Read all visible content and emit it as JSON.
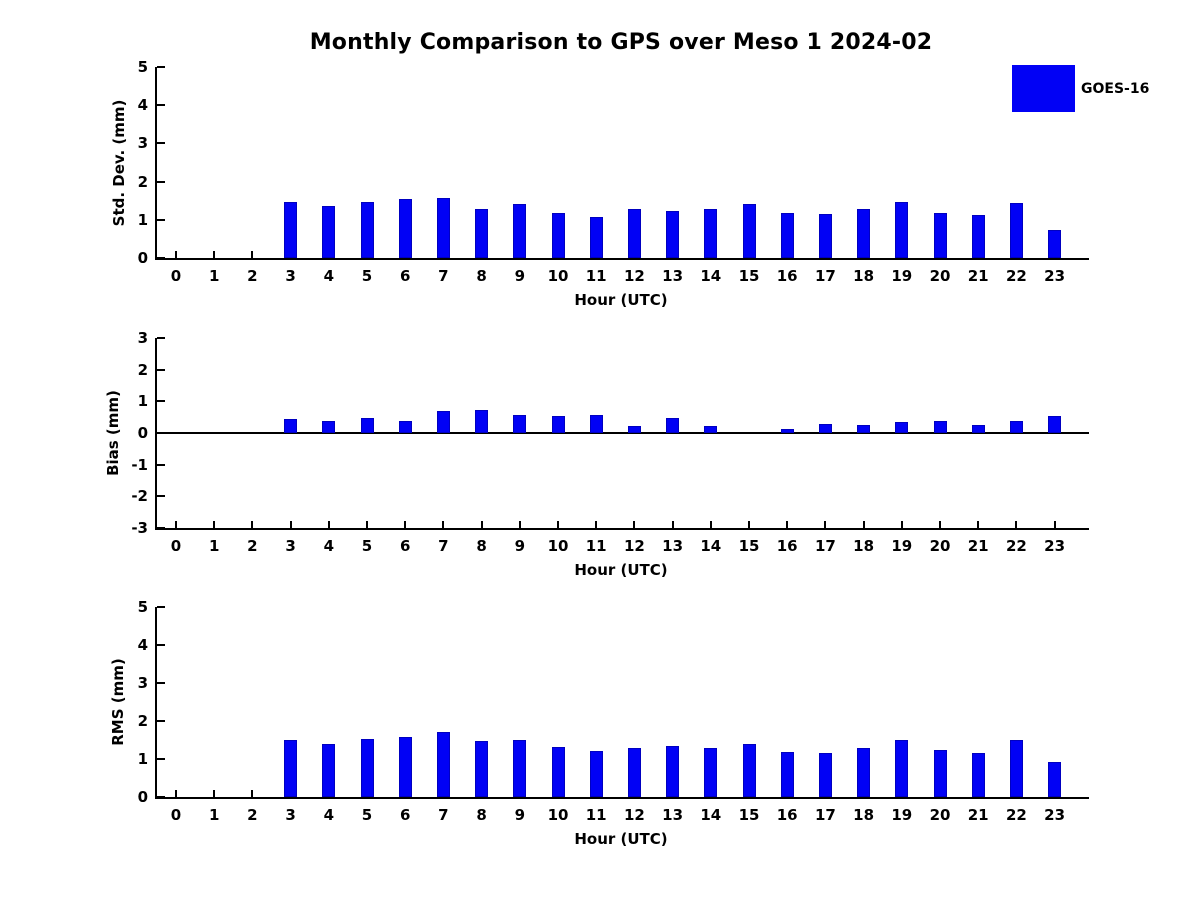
{
  "page": {
    "title_label": "Monthly Comparison to GPS over Meso 1 2024-02"
  },
  "legend": {
    "label": "GOES-16",
    "color": "#0101f5"
  },
  "chart_data": [
    {
      "type": "bar",
      "panel": "std-dev",
      "title": "Monthly Comparison to GPS over Meso 1 2024-02",
      "ylabel": "Std. Dev. (mm)",
      "xlabel": "Hour (UTC)",
      "ylim": [
        0,
        5
      ],
      "yticks": [
        0,
        1,
        2,
        3,
        4,
        5
      ],
      "grid": false,
      "legend_position": "outside-top-right",
      "categories": [
        0,
        1,
        2,
        3,
        4,
        5,
        6,
        7,
        8,
        9,
        10,
        11,
        12,
        13,
        14,
        15,
        16,
        17,
        18,
        19,
        20,
        21,
        22,
        23
      ],
      "series": [
        {
          "name": "GOES-16",
          "values": [
            null,
            null,
            null,
            1.47,
            1.36,
            1.47,
            1.55,
            1.58,
            1.28,
            1.42,
            1.18,
            1.08,
            1.28,
            1.23,
            1.28,
            1.41,
            1.17,
            1.14,
            1.28,
            1.46,
            1.17,
            1.12,
            1.44,
            0.73
          ]
        }
      ]
    },
    {
      "type": "bar",
      "panel": "bias",
      "title": "",
      "ylabel": "Bias (mm)",
      "xlabel": "Hour (UTC)",
      "ylim": [
        -3,
        3
      ],
      "yticks": [
        3,
        2,
        1,
        0,
        -1,
        -2,
        -3
      ],
      "grid": false,
      "zero_line": true,
      "categories": [
        0,
        1,
        2,
        3,
        4,
        5,
        6,
        7,
        8,
        9,
        10,
        11,
        12,
        13,
        14,
        15,
        16,
        17,
        18,
        19,
        20,
        21,
        22,
        23
      ],
      "series": [
        {
          "name": "GOES-16",
          "values": [
            null,
            null,
            null,
            0.43,
            0.37,
            0.46,
            0.39,
            0.7,
            0.74,
            0.56,
            0.55,
            0.58,
            0.21,
            0.46,
            0.23,
            0.0,
            0.13,
            0.27,
            0.26,
            0.34,
            0.37,
            0.25,
            0.39,
            0.54
          ]
        }
      ]
    },
    {
      "type": "bar",
      "panel": "rms",
      "title": "",
      "ylabel": "RMS (mm)",
      "xlabel": "Hour (UTC)",
      "ylim": [
        0,
        5
      ],
      "yticks": [
        0,
        1,
        2,
        3,
        4,
        5
      ],
      "grid": false,
      "categories": [
        0,
        1,
        2,
        3,
        4,
        5,
        6,
        7,
        8,
        9,
        10,
        11,
        12,
        13,
        14,
        15,
        16,
        17,
        18,
        19,
        20,
        21,
        22,
        23
      ],
      "series": [
        {
          "name": "GOES-16",
          "values": [
            null,
            null,
            null,
            1.51,
            1.4,
            1.53,
            1.59,
            1.72,
            1.47,
            1.51,
            1.31,
            1.22,
            1.3,
            1.33,
            1.3,
            1.4,
            1.19,
            1.17,
            1.3,
            1.49,
            1.23,
            1.15,
            1.51,
            0.92
          ]
        }
      ]
    }
  ]
}
